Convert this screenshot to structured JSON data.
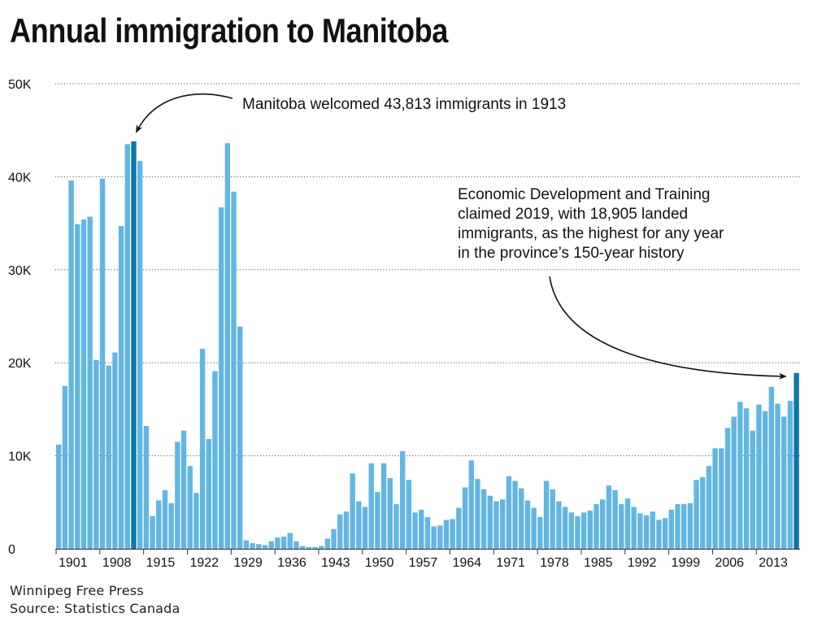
{
  "chart_data": {
    "type": "bar",
    "title": "Annual immigration to Manitoba",
    "xlabel": "",
    "ylabel": "",
    "ylim": [
      0,
      50000
    ],
    "grid": true,
    "yticks": [
      0,
      10000,
      20000,
      30000,
      40000,
      50000
    ],
    "ytick_labels": [
      "0",
      "10K",
      "20K",
      "30K",
      "40K",
      "50K"
    ],
    "xtick_years": [
      1901,
      1908,
      1915,
      1922,
      1929,
      1936,
      1943,
      1950,
      1957,
      1964,
      1971,
      1978,
      1985,
      1992,
      1999,
      2006,
      2013
    ],
    "xtick_labels": [
      "1901",
      "1908",
      "1915",
      "1922",
      "1929",
      "1936",
      "1943",
      "1950",
      "1957",
      "1964",
      "1971",
      "1978",
      "1985",
      "1992",
      "1999",
      "2006",
      "2013"
    ],
    "start_year": 1901,
    "highlight_years": [
      1913,
      2019
    ],
    "colors": {
      "bar": "#62b6e4",
      "highlight": "#0b77aa",
      "grid": "#555555",
      "text": "#111111"
    },
    "values": [
      11200,
      17500,
      39600,
      34900,
      35400,
      35700,
      20300,
      39800,
      19700,
      21100,
      34700,
      43500,
      43813,
      41700,
      13200,
      3500,
      5200,
      6300,
      4900,
      11500,
      12700,
      8900,
      6000,
      21500,
      11800,
      19100,
      36700,
      43600,
      38400,
      23900,
      900,
      600,
      500,
      400,
      800,
      1200,
      1300,
      1700,
      800,
      300,
      200,
      200,
      300,
      1100,
      2100,
      3700,
      4000,
      8100,
      5100,
      4500,
      9200,
      6100,
      9200,
      7600,
      4800,
      10500,
      7400,
      3900,
      4200,
      3400,
      2400,
      2500,
      3100,
      3200,
      4400,
      6600,
      9500,
      7500,
      6400,
      5700,
      5100,
      5300,
      7800,
      7300,
      6500,
      5200,
      4400,
      3400,
      7300,
      6400,
      5100,
      4500,
      3900,
      3500,
      3900,
      4100,
      4800,
      5300,
      6800,
      6300,
      4800,
      5400,
      4500,
      3800,
      3600,
      4000,
      3100,
      3300,
      4200,
      4800,
      4800,
      4900,
      7400,
      7700,
      8900,
      10800,
      10800,
      13000,
      14200,
      15800,
      15100,
      12700,
      15500,
      14800,
      17400,
      15600,
      14200,
      15900,
      18905
    ],
    "annotations": [
      {
        "text": "Manitoba welcomed 43,813 immigrants in 1913",
        "year": 1913
      },
      {
        "lines": [
          "Economic Development and Training",
          "claimed 2019, with 18,905 landed",
          "immigrants, as the highest for any year",
          "in the province’s 150-year history"
        ],
        "year": 2019
      }
    ]
  },
  "footer": {
    "publisher": "Winnipeg Free Press",
    "source": "Source: Statistics Canada"
  }
}
